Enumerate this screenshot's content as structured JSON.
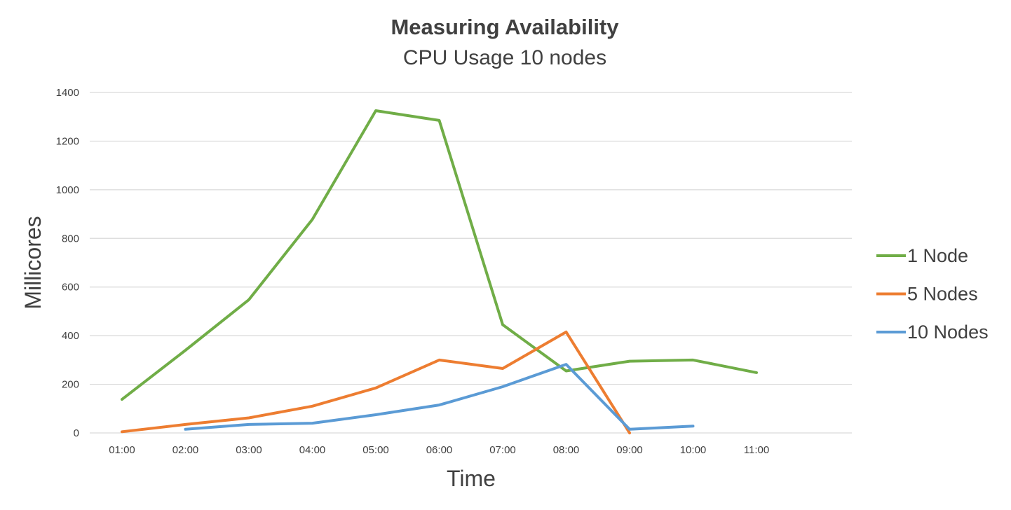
{
  "chart_data": {
    "type": "line",
    "title": "Measuring Availability",
    "subtitle": "CPU Usage 10 nodes",
    "xlabel": "Time",
    "ylabel": "Millicores",
    "categories": [
      "01:00",
      "02:00",
      "03:00",
      "04:00",
      "05:00",
      "06:00",
      "07:00",
      "08:00",
      "09:00",
      "10:00",
      "11:00"
    ],
    "ylim": [
      0,
      1400
    ],
    "yticks": [
      0,
      200,
      400,
      600,
      800,
      1000,
      1200,
      1400
    ],
    "grid": true,
    "legend_position": "right",
    "series": [
      {
        "name": "1 Node",
        "color": "#70AD47",
        "values": [
          138,
          340,
          548,
          878,
          1325,
          1285,
          445,
          255,
          295,
          300,
          248
        ]
      },
      {
        "name": "5 Nodes",
        "color": "#ED7D31",
        "values": [
          5,
          35,
          62,
          110,
          185,
          300,
          265,
          415,
          0,
          null,
          null
        ]
      },
      {
        "name": "10 Nodes",
        "color": "#5B9BD5",
        "values": [
          null,
          15,
          35,
          40,
          75,
          115,
          190,
          282,
          15,
          28,
          null
        ]
      }
    ]
  }
}
